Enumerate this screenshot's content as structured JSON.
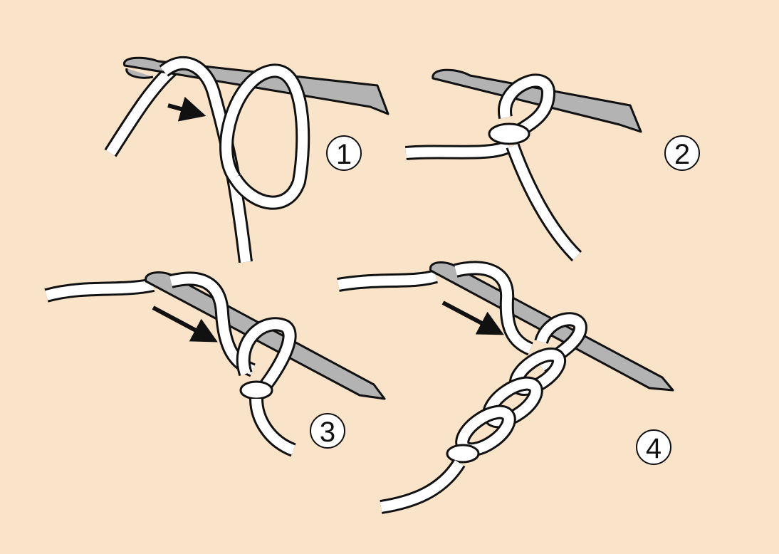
{
  "diagram": {
    "background_color": "#f9e3c9",
    "hook_color": "#b3b3b3",
    "yarn_color": "#ffffff",
    "outline_color": "#111111",
    "steps": [
      {
        "label": "1"
      },
      {
        "label": "2"
      },
      {
        "label": "3"
      },
      {
        "label": "4"
      }
    ]
  }
}
